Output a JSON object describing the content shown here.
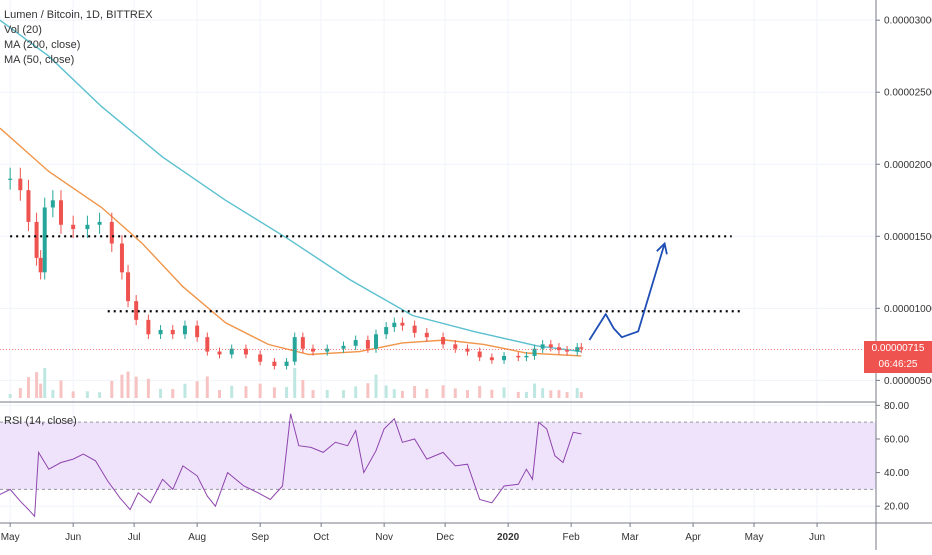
{
  "header": {
    "title": "Lumen / Bitcoin, 1D, BITTREX",
    "indicators": [
      "Vol (20)",
      "MA (200, close)",
      "MA (50, close)"
    ]
  },
  "rsi_pane": {
    "title": "RSI (14, close)"
  },
  "price_tags": {
    "last_price": "0.00000715",
    "countdown": "06:46:25"
  },
  "colors": {
    "up": "#26a69a",
    "down": "#ef5350",
    "ma200": "#5bc0cf",
    "ma50": "#f0954a",
    "rsi_line": "#8e44ad",
    "rsi_band": "#efe3fb",
    "annotation_arrow": "#1f4fb5",
    "price_tag": "#ef5350"
  },
  "chart_data": [
    {
      "type": "line",
      "title": "Lumen / Bitcoin, 1D, BITTREX",
      "x_tick_labels": [
        "May",
        "Jun",
        "Jul",
        "Aug",
        "Sep",
        "Oct",
        "Nov",
        "Dec",
        "2020",
        "Feb",
        "Mar",
        "Apr",
        "May",
        "Jun"
      ],
      "y_tick_labels": [
        "0.00003000",
        "0.00002500",
        "0.00002000",
        "0.00001500",
        "0.00001000",
        "0.00000500"
      ],
      "ylim": [
        3.5e-06,
        3.14e-05
      ],
      "grid": true,
      "legend": "top-left",
      "series": [
        {
          "name": "Lumen / Bitcoin",
          "style": "candlestick-close",
          "points": [
            [
              "2019-05-01",
              1.9e-05
            ],
            [
              "2019-05-06",
              1.82e-05
            ],
            [
              "2019-05-10",
              1.6e-05
            ],
            [
              "2019-05-14",
              1.35e-05
            ],
            [
              "2019-05-16",
              1.25e-05
            ],
            [
              "2019-05-18",
              1.7e-05
            ],
            [
              "2019-05-22",
              1.75e-05
            ],
            [
              "2019-05-26",
              1.58e-05
            ],
            [
              "2019-06-01",
              1.55e-05
            ],
            [
              "2019-06-08",
              1.58e-05
            ],
            [
              "2019-06-14",
              1.6e-05
            ],
            [
              "2019-06-20",
              1.45e-05
            ],
            [
              "2019-06-25",
              1.25e-05
            ],
            [
              "2019-06-28",
              1.05e-05
            ],
            [
              "2019-07-02",
              9.2e-06
            ],
            [
              "2019-07-08",
              8.2e-06
            ],
            [
              "2019-07-14",
              8.5e-06
            ],
            [
              "2019-07-20",
              8.2e-06
            ],
            [
              "2019-07-26",
              8.8e-06
            ],
            [
              "2019-08-01",
              8e-06
            ],
            [
              "2019-08-06",
              7e-06
            ],
            [
              "2019-08-12",
              6.8e-06
            ],
            [
              "2019-08-18",
              7.2e-06
            ],
            [
              "2019-08-25",
              6.8e-06
            ],
            [
              "2019-09-01",
              6.3e-06
            ],
            [
              "2019-09-08",
              6e-06
            ],
            [
              "2019-09-14",
              6.3e-06
            ],
            [
              "2019-09-18",
              8e-06
            ],
            [
              "2019-09-22",
              7.2e-06
            ],
            [
              "2019-09-27",
              7e-06
            ],
            [
              "2019-10-04",
              7.2e-06
            ],
            [
              "2019-10-12",
              7.4e-06
            ],
            [
              "2019-10-18",
              7.8e-06
            ],
            [
              "2019-10-24",
              7.2e-06
            ],
            [
              "2019-10-28",
              8.2e-06
            ],
            [
              "2019-11-02",
              8.7e-06
            ],
            [
              "2019-11-06",
              9e-06
            ],
            [
              "2019-11-10",
              8.8e-06
            ],
            [
              "2019-11-16",
              8.3e-06
            ],
            [
              "2019-11-22",
              8e-06
            ],
            [
              "2019-11-30",
              7.5e-06
            ],
            [
              "2019-12-06",
              7.2e-06
            ],
            [
              "2019-12-12",
              7e-06
            ],
            [
              "2019-12-18",
              6.6e-06
            ],
            [
              "2019-12-24",
              6.4e-06
            ],
            [
              "2019-12-30",
              6.7e-06
            ],
            [
              "2020-01-06",
              6.6e-06
            ],
            [
              "2020-01-10",
              6.7e-06
            ],
            [
              "2020-01-14",
              7.2e-06
            ],
            [
              "2020-01-18",
              7.5e-06
            ],
            [
              "2020-01-22",
              7.3e-06
            ],
            [
              "2020-01-26",
              7.1e-06
            ],
            [
              "2020-01-30",
              7e-06
            ],
            [
              "2020-02-04",
              7.3e-06
            ],
            [
              "2020-02-06",
              7.2e-06
            ]
          ]
        },
        {
          "name": "MA (200, close)",
          "points": [
            [
              "2019-04-26",
              3e-05
            ],
            [
              "2019-05-20",
              2.75e-05
            ],
            [
              "2019-06-15",
              2.4e-05
            ],
            [
              "2019-07-15",
              2.05e-05
            ],
            [
              "2019-08-15",
              1.75e-05
            ],
            [
              "2019-09-15",
              1.48e-05
            ],
            [
              "2019-10-15",
              1.2e-05
            ],
            [
              "2019-11-15",
              9.5e-06
            ],
            [
              "2019-12-15",
              8.4e-06
            ],
            [
              "2020-01-15",
              7.4e-06
            ],
            [
              "2020-02-06",
              7e-06
            ]
          ]
        },
        {
          "name": "MA (50, close)",
          "points": [
            [
              "2019-04-26",
              2.25e-05
            ],
            [
              "2019-05-20",
              1.95e-05
            ],
            [
              "2019-06-15",
              1.7e-05
            ],
            [
              "2019-07-05",
              1.45e-05
            ],
            [
              "2019-07-25",
              1.15e-05
            ],
            [
              "2019-08-15",
              9e-06
            ],
            [
              "2019-09-05",
              7.5e-06
            ],
            [
              "2019-09-25",
              6.8e-06
            ],
            [
              "2019-10-20",
              7e-06
            ],
            [
              "2019-11-10",
              7.6e-06
            ],
            [
              "2019-12-01",
              7.8e-06
            ],
            [
              "2019-12-20",
              7.5e-06
            ],
            [
              "2020-01-10",
              6.9e-06
            ],
            [
              "2020-02-06",
              6.7e-06
            ]
          ]
        }
      ],
      "annotations": [
        {
          "type": "dotted-level",
          "price": 1.5e-05,
          "from": "2019-05-01",
          "to": "2020-04-20"
        },
        {
          "type": "dotted-level",
          "price": 9.8e-06,
          "from": "2019-06-18",
          "to": "2020-04-24"
        },
        {
          "type": "arrow-path",
          "color": "#1f4fb5",
          "points": [
            [
              "2020-02-10",
              7.8e-06
            ],
            [
              "2020-02-18",
              9.6e-06
            ],
            [
              "2020-02-22",
              8.6e-06
            ],
            [
              "2020-02-26",
              8e-06
            ],
            [
              "2020-03-05",
              8.4e-06
            ],
            [
              "2020-03-18",
              1.45e-05
            ]
          ]
        }
      ]
    },
    {
      "type": "line",
      "title": "RSI (14, close)",
      "y_tick_labels": [
        "80.00",
        "60.00",
        "40.00",
        "20.00"
      ],
      "ylim": [
        10,
        82
      ],
      "bands": [
        30,
        70
      ],
      "series": [
        {
          "name": "RSI (14, close)",
          "points": [
            [
              "2019-04-26",
              27
            ],
            [
              "2019-05-01",
              30
            ],
            [
              "2019-05-06",
              23
            ],
            [
              "2019-05-10",
              18
            ],
            [
              "2019-05-13",
              14
            ],
            [
              "2019-05-15",
              52
            ],
            [
              "2019-05-20",
              42
            ],
            [
              "2019-05-26",
              46
            ],
            [
              "2019-06-01",
              48
            ],
            [
              "2019-06-06",
              51
            ],
            [
              "2019-06-12",
              47
            ],
            [
              "2019-06-18",
              35
            ],
            [
              "2019-06-24",
              25
            ],
            [
              "2019-06-29",
              18
            ],
            [
              "2019-07-03",
              28
            ],
            [
              "2019-07-09",
              22
            ],
            [
              "2019-07-15",
              36
            ],
            [
              "2019-07-20",
              30
            ],
            [
              "2019-07-25",
              44
            ],
            [
              "2019-08-01",
              38
            ],
            [
              "2019-08-06",
              26
            ],
            [
              "2019-08-10",
              20
            ],
            [
              "2019-08-16",
              40
            ],
            [
              "2019-08-24",
              32
            ],
            [
              "2019-08-31",
              28
            ],
            [
              "2019-09-06",
              24
            ],
            [
              "2019-09-12",
              32
            ],
            [
              "2019-09-16",
              75
            ],
            [
              "2019-09-20",
              56
            ],
            [
              "2019-09-26",
              55
            ],
            [
              "2019-10-02",
              52
            ],
            [
              "2019-10-08",
              58
            ],
            [
              "2019-10-14",
              56
            ],
            [
              "2019-10-18",
              65
            ],
            [
              "2019-10-22",
              40
            ],
            [
              "2019-10-28",
              53
            ],
            [
              "2019-11-01",
              66
            ],
            [
              "2019-11-06",
              72
            ],
            [
              "2019-11-10",
              58
            ],
            [
              "2019-11-16",
              60
            ],
            [
              "2019-11-22",
              48
            ],
            [
              "2019-11-30",
              52
            ],
            [
              "2019-12-06",
              44
            ],
            [
              "2019-12-12",
              45
            ],
            [
              "2019-12-18",
              24
            ],
            [
              "2019-12-24",
              22
            ],
            [
              "2019-12-30",
              32
            ],
            [
              "2020-01-06",
              33
            ],
            [
              "2020-01-10",
              42
            ],
            [
              "2020-01-13",
              36
            ],
            [
              "2020-01-16",
              70
            ],
            [
              "2020-01-20",
              66
            ],
            [
              "2020-01-24",
              50
            ],
            [
              "2020-01-28",
              46
            ],
            [
              "2020-02-02",
              64
            ],
            [
              "2020-02-06",
              63
            ]
          ]
        }
      ]
    }
  ]
}
